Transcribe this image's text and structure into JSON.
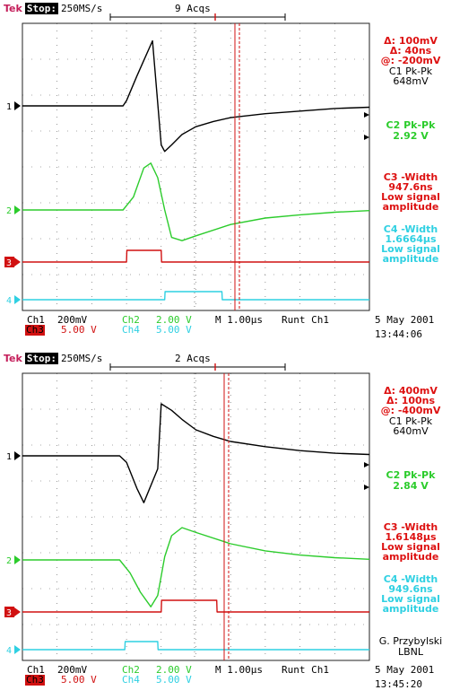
{
  "screens": [
    {
      "brand": "Tek",
      "status": "Stop:",
      "sample_rate": "250MS/s",
      "acqs": "9 Acqs",
      "cursor": {
        "delta_v": "Δ: 100mV",
        "delta_t": "Δ: 40ns",
        "at": "@: -200mV"
      },
      "measurements": [
        {
          "label": "C1 Pk-Pk",
          "value": "648mV",
          "color": "#000000"
        },
        {
          "label": "C2 Pk-Pk",
          "value": "2.92 V",
          "color": "#2ccc2c"
        },
        {
          "label": "C3 -Width",
          "value": "947.6ns",
          "note": "Low signal amplitude",
          "color": "#d11111"
        },
        {
          "label": "C4 -Width",
          "value": "1.6664µs",
          "note": "Low signal amplitude",
          "color": "#2fd0e2"
        }
      ],
      "channels": {
        "ch1": {
          "name": "Ch1",
          "scale": "200mV"
        },
        "ch2": {
          "name": "Ch2",
          "scale": "2.00 V"
        },
        "ch3": {
          "name": "Ch3",
          "scale": "5.00 V"
        },
        "ch4": {
          "name": "Ch4",
          "scale": "5.00 V"
        },
        "timebase": "M 1.00µs",
        "trigger": "Runt  Ch1"
      },
      "date": "5 May 2001",
      "time": "13:44:06",
      "chart_data": {
        "type": "line",
        "x_unit": "µs",
        "xlim": [
          -3.0,
          7.0
        ],
        "series": [
          {
            "name": "Ch1",
            "color": "#000000",
            "x": [
              -3.0,
              -0.1,
              0.0,
              0.3,
              0.5,
              0.75,
              1.0,
              1.1,
              1.3,
              1.6,
              2.0,
              2.5,
              3.0,
              4.0,
              5.0,
              6.0,
              7.0
            ],
            "y": [
              0.0,
              0.0,
              0.04,
              0.23,
              0.35,
              0.5,
              -0.3,
              -0.35,
              -0.3,
              -0.22,
              -0.16,
              -0.12,
              -0.09,
              -0.06,
              -0.04,
              -0.02,
              -0.01
            ]
          },
          {
            "name": "Ch2",
            "color": "#2ccc2c",
            "x": [
              -3.0,
              -0.1,
              0.2,
              0.5,
              0.7,
              0.9,
              1.1,
              1.3,
              1.6,
              2.0,
              3.0,
              4.0,
              5.0,
              6.0,
              7.0
            ],
            "y": [
              0.0,
              0.0,
              0.4,
              1.3,
              1.45,
              1.0,
              0.0,
              -0.85,
              -0.95,
              -0.8,
              -0.45,
              -0.25,
              -0.15,
              -0.07,
              -0.02
            ]
          },
          {
            "name": "Ch3",
            "color": "#d11111",
            "x": [
              -3.0,
              0.0,
              0.01,
              1.0,
              1.01,
              7.0
            ],
            "y": [
              0.0,
              0.0,
              1.0,
              1.0,
              0.0,
              0.0
            ]
          },
          {
            "name": "Ch4",
            "color": "#2fd0e2",
            "x": [
              -3.0,
              1.1,
              1.11,
              2.75,
              2.76,
              7.0
            ],
            "y": [
              0.0,
              0.0,
              1.0,
              1.0,
              0.0,
              0.0
            ]
          }
        ]
      }
    },
    {
      "brand": "Tek",
      "status": "Stop:",
      "sample_rate": "250MS/s",
      "acqs": "2 Acqs",
      "cursor": {
        "delta_v": "Δ: 400mV",
        "delta_t": "Δ: 100ns",
        "at": "@: -400mV"
      },
      "measurements": [
        {
          "label": "C1 Pk-Pk",
          "value": "640mV",
          "color": "#000000"
        },
        {
          "label": "C2 Pk-Pk",
          "value": "2.84 V",
          "color": "#2ccc2c"
        },
        {
          "label": "C3 -Width",
          "value": "1.6148µs",
          "note": "Low signal amplitude",
          "color": "#d11111"
        },
        {
          "label": "C4 -Width",
          "value": "949.6ns",
          "note": "Low signal amplitude",
          "color": "#2fd0e2"
        }
      ],
      "channels": {
        "ch1": {
          "name": "Ch1",
          "scale": "200mV"
        },
        "ch2": {
          "name": "Ch2",
          "scale": "2.00 V"
        },
        "ch3": {
          "name": "Ch3",
          "scale": "5.00 V"
        },
        "ch4": {
          "name": "Ch4",
          "scale": "5.00 V"
        },
        "timebase": "M 1.00µs",
        "trigger": "Runt  Ch1"
      },
      "signature": [
        "G. Przybylski",
        "LBNL"
      ],
      "date": "5 May 2001",
      "time": "13:45:20",
      "chart_data": {
        "type": "line",
        "x_unit": "µs",
        "xlim": [
          -3.0,
          7.0
        ],
        "series": [
          {
            "name": "Ch1",
            "color": "#000000",
            "x": [
              -3.0,
              -0.2,
              0.0,
              0.3,
              0.5,
              0.9,
              1.0,
              1.3,
              1.6,
              2.0,
              2.5,
              3.0,
              4.0,
              5.0,
              6.0,
              7.0
            ],
            "y": [
              0.0,
              0.0,
              -0.05,
              -0.25,
              -0.36,
              -0.1,
              0.4,
              0.35,
              0.28,
              0.2,
              0.15,
              0.11,
              0.07,
              0.04,
              0.02,
              0.01
            ]
          },
          {
            "name": "Ch2",
            "color": "#2ccc2c",
            "x": [
              -3.0,
              -0.2,
              0.1,
              0.4,
              0.7,
              0.9,
              1.1,
              1.3,
              1.6,
              2.0,
              3.0,
              4.0,
              5.0,
              6.0,
              7.0
            ],
            "y": [
              0.0,
              0.0,
              -0.4,
              -1.0,
              -1.45,
              -1.1,
              0.1,
              0.75,
              1.0,
              0.85,
              0.5,
              0.28,
              0.15,
              0.07,
              0.02
            ]
          },
          {
            "name": "Ch3",
            "color": "#d11111",
            "x": [
              -3.0,
              1.0,
              1.01,
              2.6,
              2.61,
              7.0
            ],
            "y": [
              0.0,
              0.0,
              1.0,
              1.0,
              0.0,
              0.0
            ]
          },
          {
            "name": "Ch4",
            "color": "#2fd0e2",
            "x": [
              -3.0,
              -0.05,
              -0.04,
              0.9,
              0.91,
              7.0
            ],
            "y": [
              0.0,
              0.0,
              1.0,
              1.0,
              0.0,
              0.0
            ]
          }
        ]
      }
    }
  ]
}
